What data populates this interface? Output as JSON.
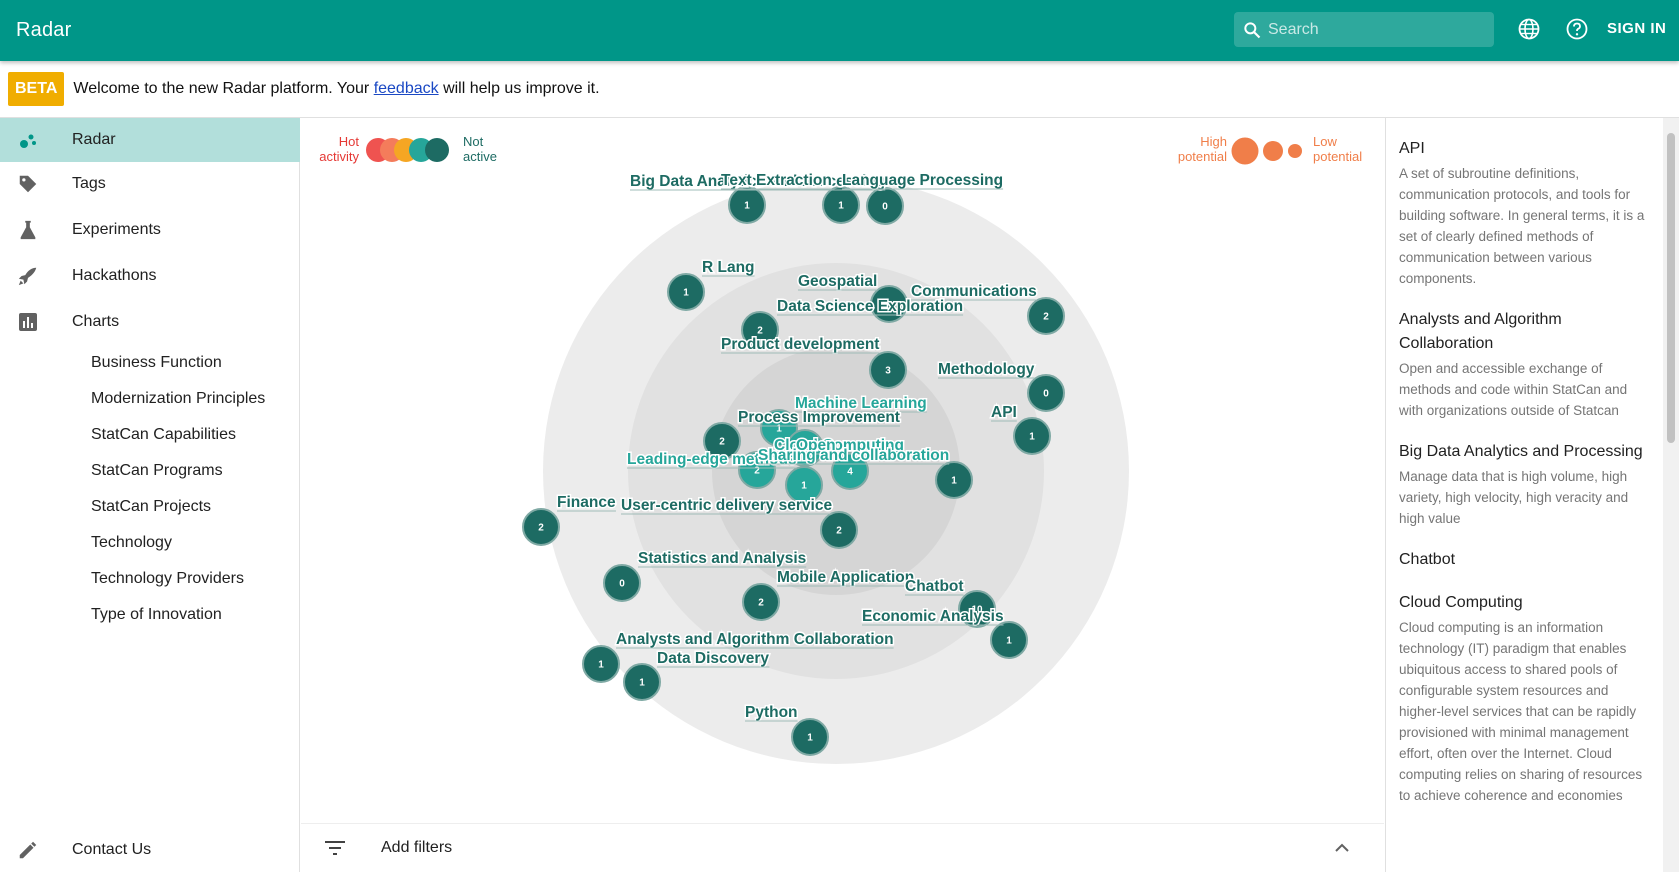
{
  "app": {
    "title": "Radar"
  },
  "header": {
    "search_placeholder": "Search",
    "sign_in": "SIGN IN",
    "language_icon": "globe-icon",
    "help_icon": "help-icon"
  },
  "banner": {
    "badge": "BETA",
    "text_before": "Welcome to the new Radar platform. Your ",
    "link": "feedback",
    "text_after": " will help us improve it."
  },
  "sidebar": {
    "items": [
      {
        "label": "Radar",
        "icon": "radar-icon"
      },
      {
        "label": "Tags",
        "icon": "tag-icon"
      },
      {
        "label": "Experiments",
        "icon": "flask-icon"
      },
      {
        "label": "Hackathons",
        "icon": "rocket-icon"
      },
      {
        "label": "Charts",
        "icon": "bar-chart-icon"
      }
    ],
    "chart_items": [
      "Business Function",
      "Modernization Principles",
      "StatCan Capabilities",
      "StatCan Programs",
      "StatCan Projects",
      "Technology",
      "Technology Providers",
      "Type of Innovation"
    ],
    "contact": {
      "label": "Contact Us",
      "icon": "pencil-icon"
    }
  },
  "legend": {
    "activity_hot_line1": "Hot",
    "activity_hot_line2": "activity",
    "activity_not_line1": "Not",
    "activity_not_line2": "active",
    "activity_colors": [
      "#ef5350",
      "#f47c5b",
      "#f5a623",
      "#26a69a",
      "#1d6b63"
    ],
    "potential_high_line1": "High",
    "potential_high_line2": "potential",
    "potential_low_line1": "Low",
    "potential_low_line2": "potential",
    "potential_color": "#f07e49"
  },
  "radar": {
    "ring_colors": [
      "#ececec",
      "#e1e1e1",
      "#d5d5d5",
      "#c9c9c9"
    ],
    "blips": [
      {
        "label": "Big Data Analytics and Processing",
        "count": "1",
        "color": "#1d6b63"
      },
      {
        "label": "Text Extraction",
        "count": "1",
        "color": "#1d6b63"
      },
      {
        "label": "Language Processing",
        "count": "0",
        "color": "#1d6b63"
      },
      {
        "label": "R Lang",
        "count": "1",
        "color": "#1d6b63"
      },
      {
        "label": "Geospatial",
        "count": "",
        "color": "#1d6b63"
      },
      {
        "label": "Communications",
        "count": "2",
        "color": "#1d6b63"
      },
      {
        "label": "Data Science Exploration",
        "count": "2",
        "color": "#1d6b63"
      },
      {
        "label": "Product development",
        "count": "3",
        "color": "#1d6b63"
      },
      {
        "label": "Methodology",
        "count": "0",
        "color": "#1d6b63"
      },
      {
        "label": "Machine Learning",
        "count": "1",
        "color": "#26a69a"
      },
      {
        "label": "Process Improvement",
        "count": "2",
        "color": "#1d6b63"
      },
      {
        "label": "API",
        "count": "1",
        "color": "#1d6b63"
      },
      {
        "label": "Cloud Computing",
        "count": "4",
        "color": "#26a69a"
      },
      {
        "label": "Open",
        "count": "",
        "color": "#26a69a"
      },
      {
        "label": "Leading-edge methods",
        "count": "2",
        "color": "#26a69a"
      },
      {
        "label": "Sharing and collaboration",
        "count": "1",
        "color": "#26a69a"
      },
      {
        "label": "",
        "count": "1",
        "color": "#1d6b63"
      },
      {
        "label": "Finance",
        "count": "2",
        "color": "#1d6b63"
      },
      {
        "label": "User-centric delivery service",
        "count": "2",
        "color": "#1d6b63"
      },
      {
        "label": "Statistics and Analysis",
        "count": "0",
        "color": "#1d6b63"
      },
      {
        "label": "Mobile Application",
        "count": "2",
        "color": "#1d6b63"
      },
      {
        "label": "Chatbot",
        "count": "10",
        "color": "#1d6b63"
      },
      {
        "label": "Economic Analysis",
        "count": "1",
        "color": "#1d6b63"
      },
      {
        "label": "Analysts and Algorithm Collaboration",
        "count": "1",
        "color": "#1d6b63"
      },
      {
        "label": "Data Discovery",
        "count": "1",
        "color": "#1d6b63"
      },
      {
        "label": "Python",
        "count": "1",
        "color": "#1d6b63"
      }
    ]
  },
  "filters": {
    "label": "Add filters",
    "icon": "filter-icon",
    "toggle_icon": "chevron-up-icon"
  },
  "details": [
    {
      "title": "API",
      "description": "A set of subroutine definitions, communication protocols, and tools for building software. In general terms, it is a set of clearly defined methods of communication between various components."
    },
    {
      "title": "Analysts and Algorithm Collaboration",
      "description": "Open and accessible exchange of methods and code within StatCan and with organizations outside of Statcan"
    },
    {
      "title": "Big Data Analytics and Processing",
      "description": "Manage data that is high volume, high variety, high velocity, high veracity and high value"
    },
    {
      "title": "Chatbot",
      "description": ""
    },
    {
      "title": "Cloud Computing",
      "description": "Cloud computing is an information technology (IT) paradigm that enables ubiquitous access to shared pools of configurable system resources and higher-level services that can be rapidly provisioned with minimal management effort, often over the Internet. Cloud computing relies on sharing of resources to achieve coherence and economies"
    }
  ]
}
